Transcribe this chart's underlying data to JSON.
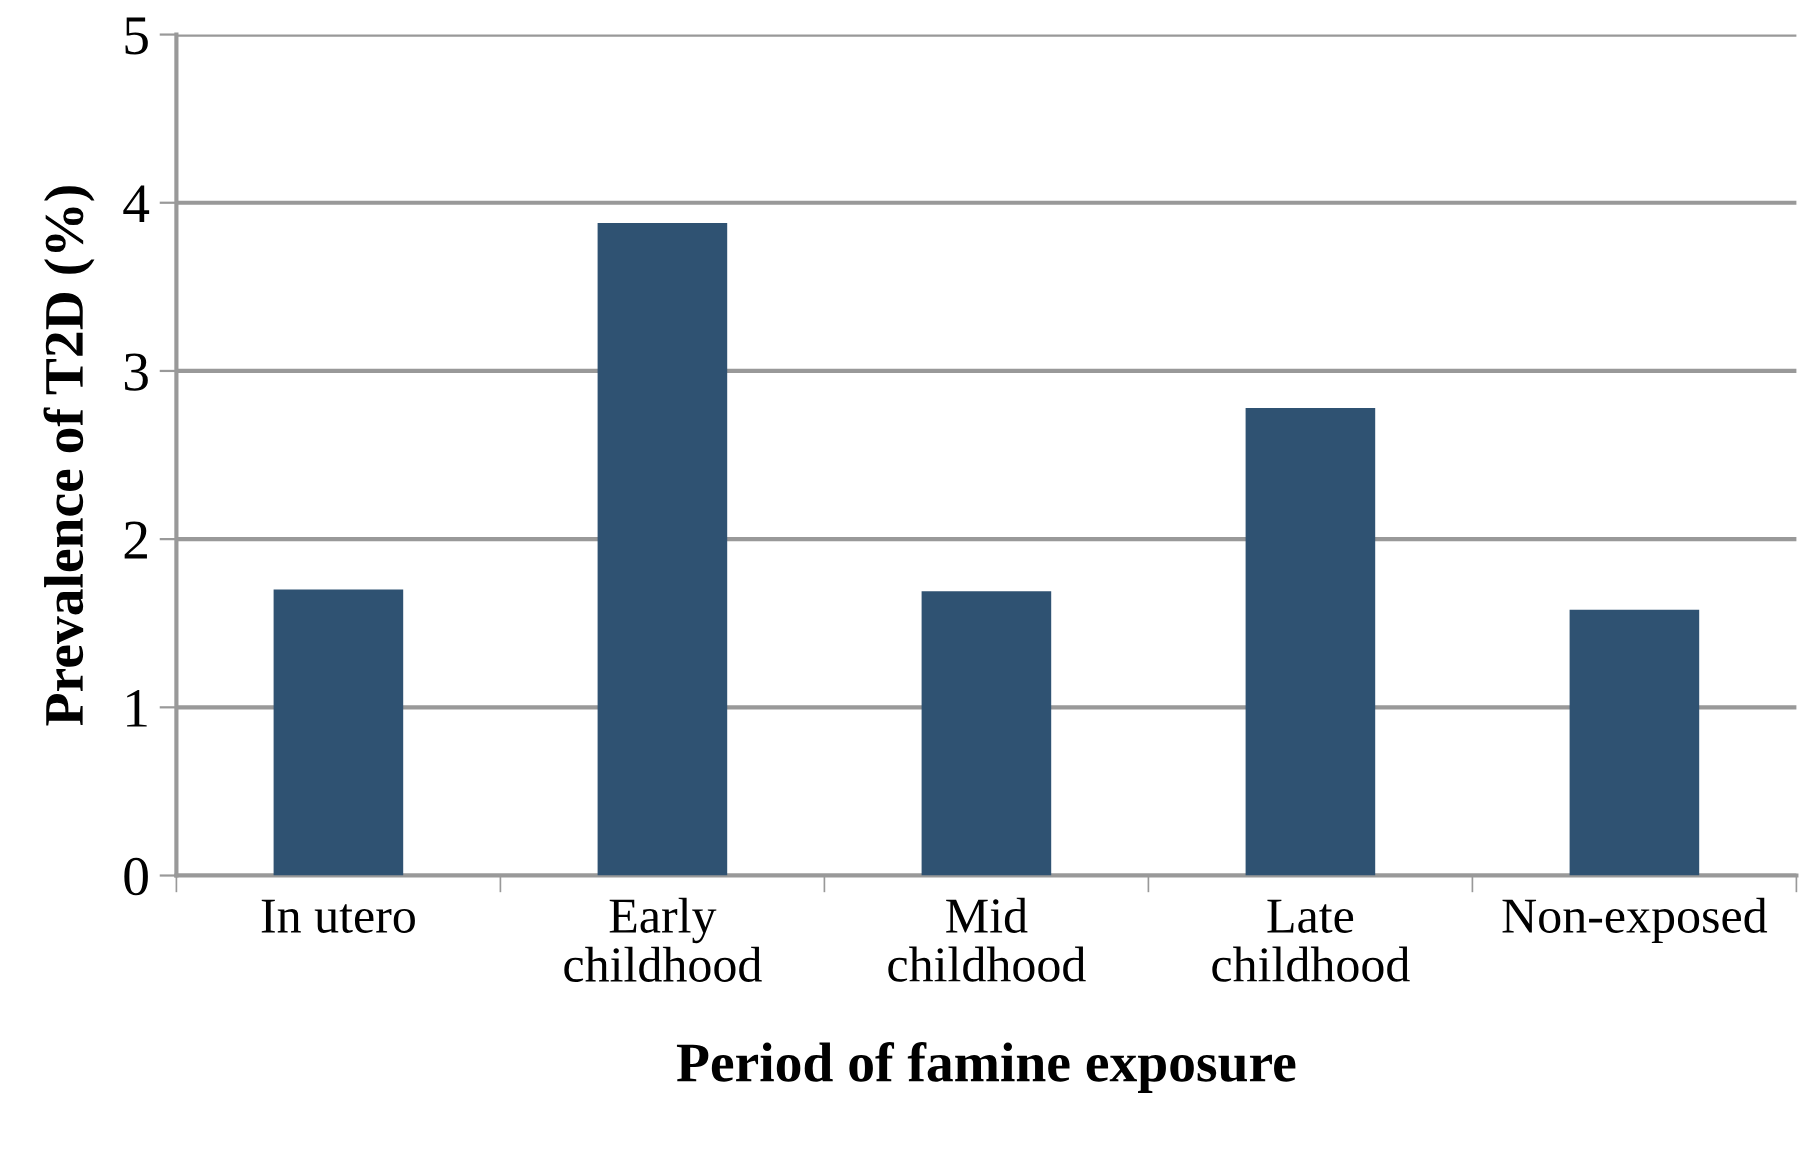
{
  "chart_data": {
    "type": "bar",
    "xlabel": "Period of famine exposure",
    "ylabel": "Prevalence of T2D (%)",
    "categories": [
      "In utero",
      "Early\nchildhood",
      "Mid\nchildhood",
      "Late\nchildhood",
      "Non-exposed"
    ],
    "values": [
      1.7,
      3.88,
      1.69,
      2.78,
      1.58
    ],
    "color": "#2f5272",
    "ylim": [
      0,
      5
    ],
    "yticks": [
      0,
      1,
      2,
      3,
      4,
      5
    ],
    "grid": "y"
  }
}
